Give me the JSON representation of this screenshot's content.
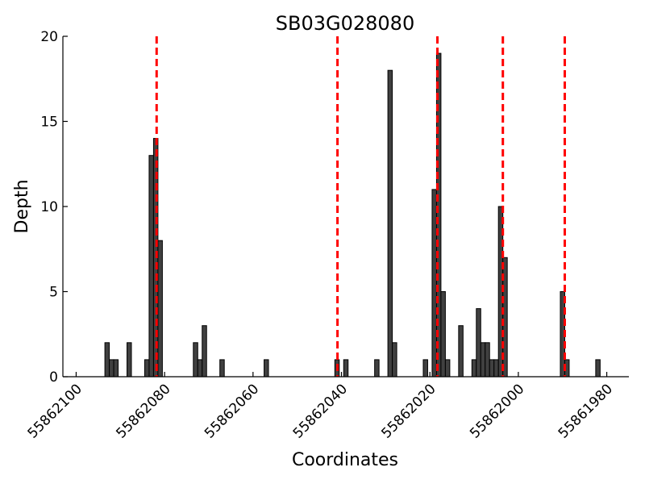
{
  "chart_data": {
    "type": "bar",
    "title": "SB03G028080",
    "xlabel": "Coordinates",
    "ylabel": "Depth",
    "xlim": [
      55862103,
      55861975
    ],
    "ylim": [
      0,
      20
    ],
    "x_ticks": [
      55862100,
      55862080,
      55862060,
      55862040,
      55862020,
      55862000,
      55861980
    ],
    "y_ticks": [
      0,
      5,
      10,
      15,
      20
    ],
    "bar_color": "#404040",
    "marker_color": "#ff0000",
    "grid": false,
    "bars": [
      {
        "x": 55862093,
        "y": 2
      },
      {
        "x": 55862092,
        "y": 1
      },
      {
        "x": 55862091,
        "y": 1
      },
      {
        "x": 55862088,
        "y": 2
      },
      {
        "x": 55862084,
        "y": 1
      },
      {
        "x": 55862083,
        "y": 13
      },
      {
        "x": 55862082,
        "y": 14
      },
      {
        "x": 55862081,
        "y": 8
      },
      {
        "x": 55862073,
        "y": 2
      },
      {
        "x": 55862072,
        "y": 1
      },
      {
        "x": 55862071,
        "y": 3
      },
      {
        "x": 55862067,
        "y": 1
      },
      {
        "x": 55862057,
        "y": 1
      },
      {
        "x": 55862041,
        "y": 1
      },
      {
        "x": 55862039,
        "y": 1
      },
      {
        "x": 55862032,
        "y": 1
      },
      {
        "x": 55862029,
        "y": 18
      },
      {
        "x": 55862028,
        "y": 2
      },
      {
        "x": 55862021,
        "y": 1
      },
      {
        "x": 55862019,
        "y": 11
      },
      {
        "x": 55862018,
        "y": 19
      },
      {
        "x": 55862017,
        "y": 5
      },
      {
        "x": 55862016,
        "y": 1
      },
      {
        "x": 55862013,
        "y": 3
      },
      {
        "x": 55862010,
        "y": 1
      },
      {
        "x": 55862009,
        "y": 4
      },
      {
        "x": 55862008,
        "y": 2
      },
      {
        "x": 55862007,
        "y": 2
      },
      {
        "x": 55862006,
        "y": 1
      },
      {
        "x": 55862005,
        "y": 1
      },
      {
        "x": 55862004,
        "y": 10
      },
      {
        "x": 55862003,
        "y": 7
      },
      {
        "x": 55861990,
        "y": 5
      },
      {
        "x": 55861989,
        "y": 1
      },
      {
        "x": 55861982,
        "y": 1
      }
    ],
    "vertical_markers": [
      55862081.8,
      55862040.9,
      55862018.3,
      55862003.5,
      55861989.5
    ]
  }
}
